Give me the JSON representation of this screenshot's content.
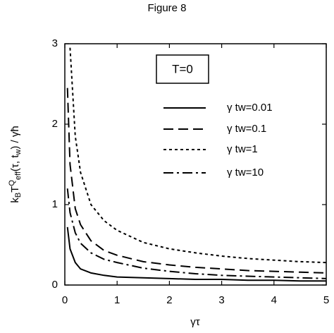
{
  "chart_data": {
    "type": "line",
    "title": "Figure 8",
    "xlabel": "γτ",
    "ylabel_parts": [
      {
        "text": "k"
      },
      {
        "text": "B",
        "sub": true
      },
      {
        "text": "T"
      },
      {
        "text": "Q",
        "sup": true
      },
      {
        "text": "eff",
        "sub": true
      },
      {
        "text": "(τ, t"
      },
      {
        "text": "w",
        "sub": true
      },
      {
        "text": ") / γħ"
      }
    ],
    "annotation": "T=0",
    "x": [
      0.05,
      0.1,
      0.2,
      0.3,
      0.5,
      0.75,
      1,
      1.5,
      2,
      2.5,
      3,
      3.5,
      4,
      4.5,
      5
    ],
    "series": [
      {
        "name": "γ tw=0.01",
        "color": "#000000",
        "dash": "solid",
        "values": [
          0.72,
          0.45,
          0.28,
          0.2,
          0.15,
          0.12,
          0.1,
          0.09,
          0.08,
          0.07,
          0.07,
          0.06,
          0.06,
          0.05,
          0.05
        ]
      },
      {
        "name": "γ tw=0.1",
        "color": "#000000",
        "dash": "dashed",
        "values": [
          2.45,
          1.5,
          0.95,
          0.75,
          0.55,
          0.43,
          0.37,
          0.29,
          0.25,
          0.22,
          0.2,
          0.18,
          0.17,
          0.16,
          0.15
        ]
      },
      {
        "name": "γ tw=1",
        "color": "#000000",
        "dash": "dotted",
        "values": [
          null,
          2.95,
          1.85,
          1.4,
          1.0,
          0.8,
          0.68,
          0.53,
          0.45,
          0.4,
          0.36,
          0.33,
          0.31,
          0.29,
          0.28
        ]
      },
      {
        "name": "γ tw=10",
        "color": "#000000",
        "dash": "dashdot",
        "values": [
          1.2,
          0.9,
          0.65,
          0.52,
          0.4,
          0.32,
          0.28,
          0.21,
          0.17,
          0.14,
          0.12,
          0.11,
          0.1,
          0.09,
          0.08
        ]
      }
    ],
    "xlim": [
      0,
      5
    ],
    "xticks": [
      0,
      1,
      2,
      3,
      4,
      5
    ],
    "ylim": [
      0,
      3
    ],
    "yticks": [
      0,
      1,
      2,
      3
    ],
    "grid": false
  }
}
